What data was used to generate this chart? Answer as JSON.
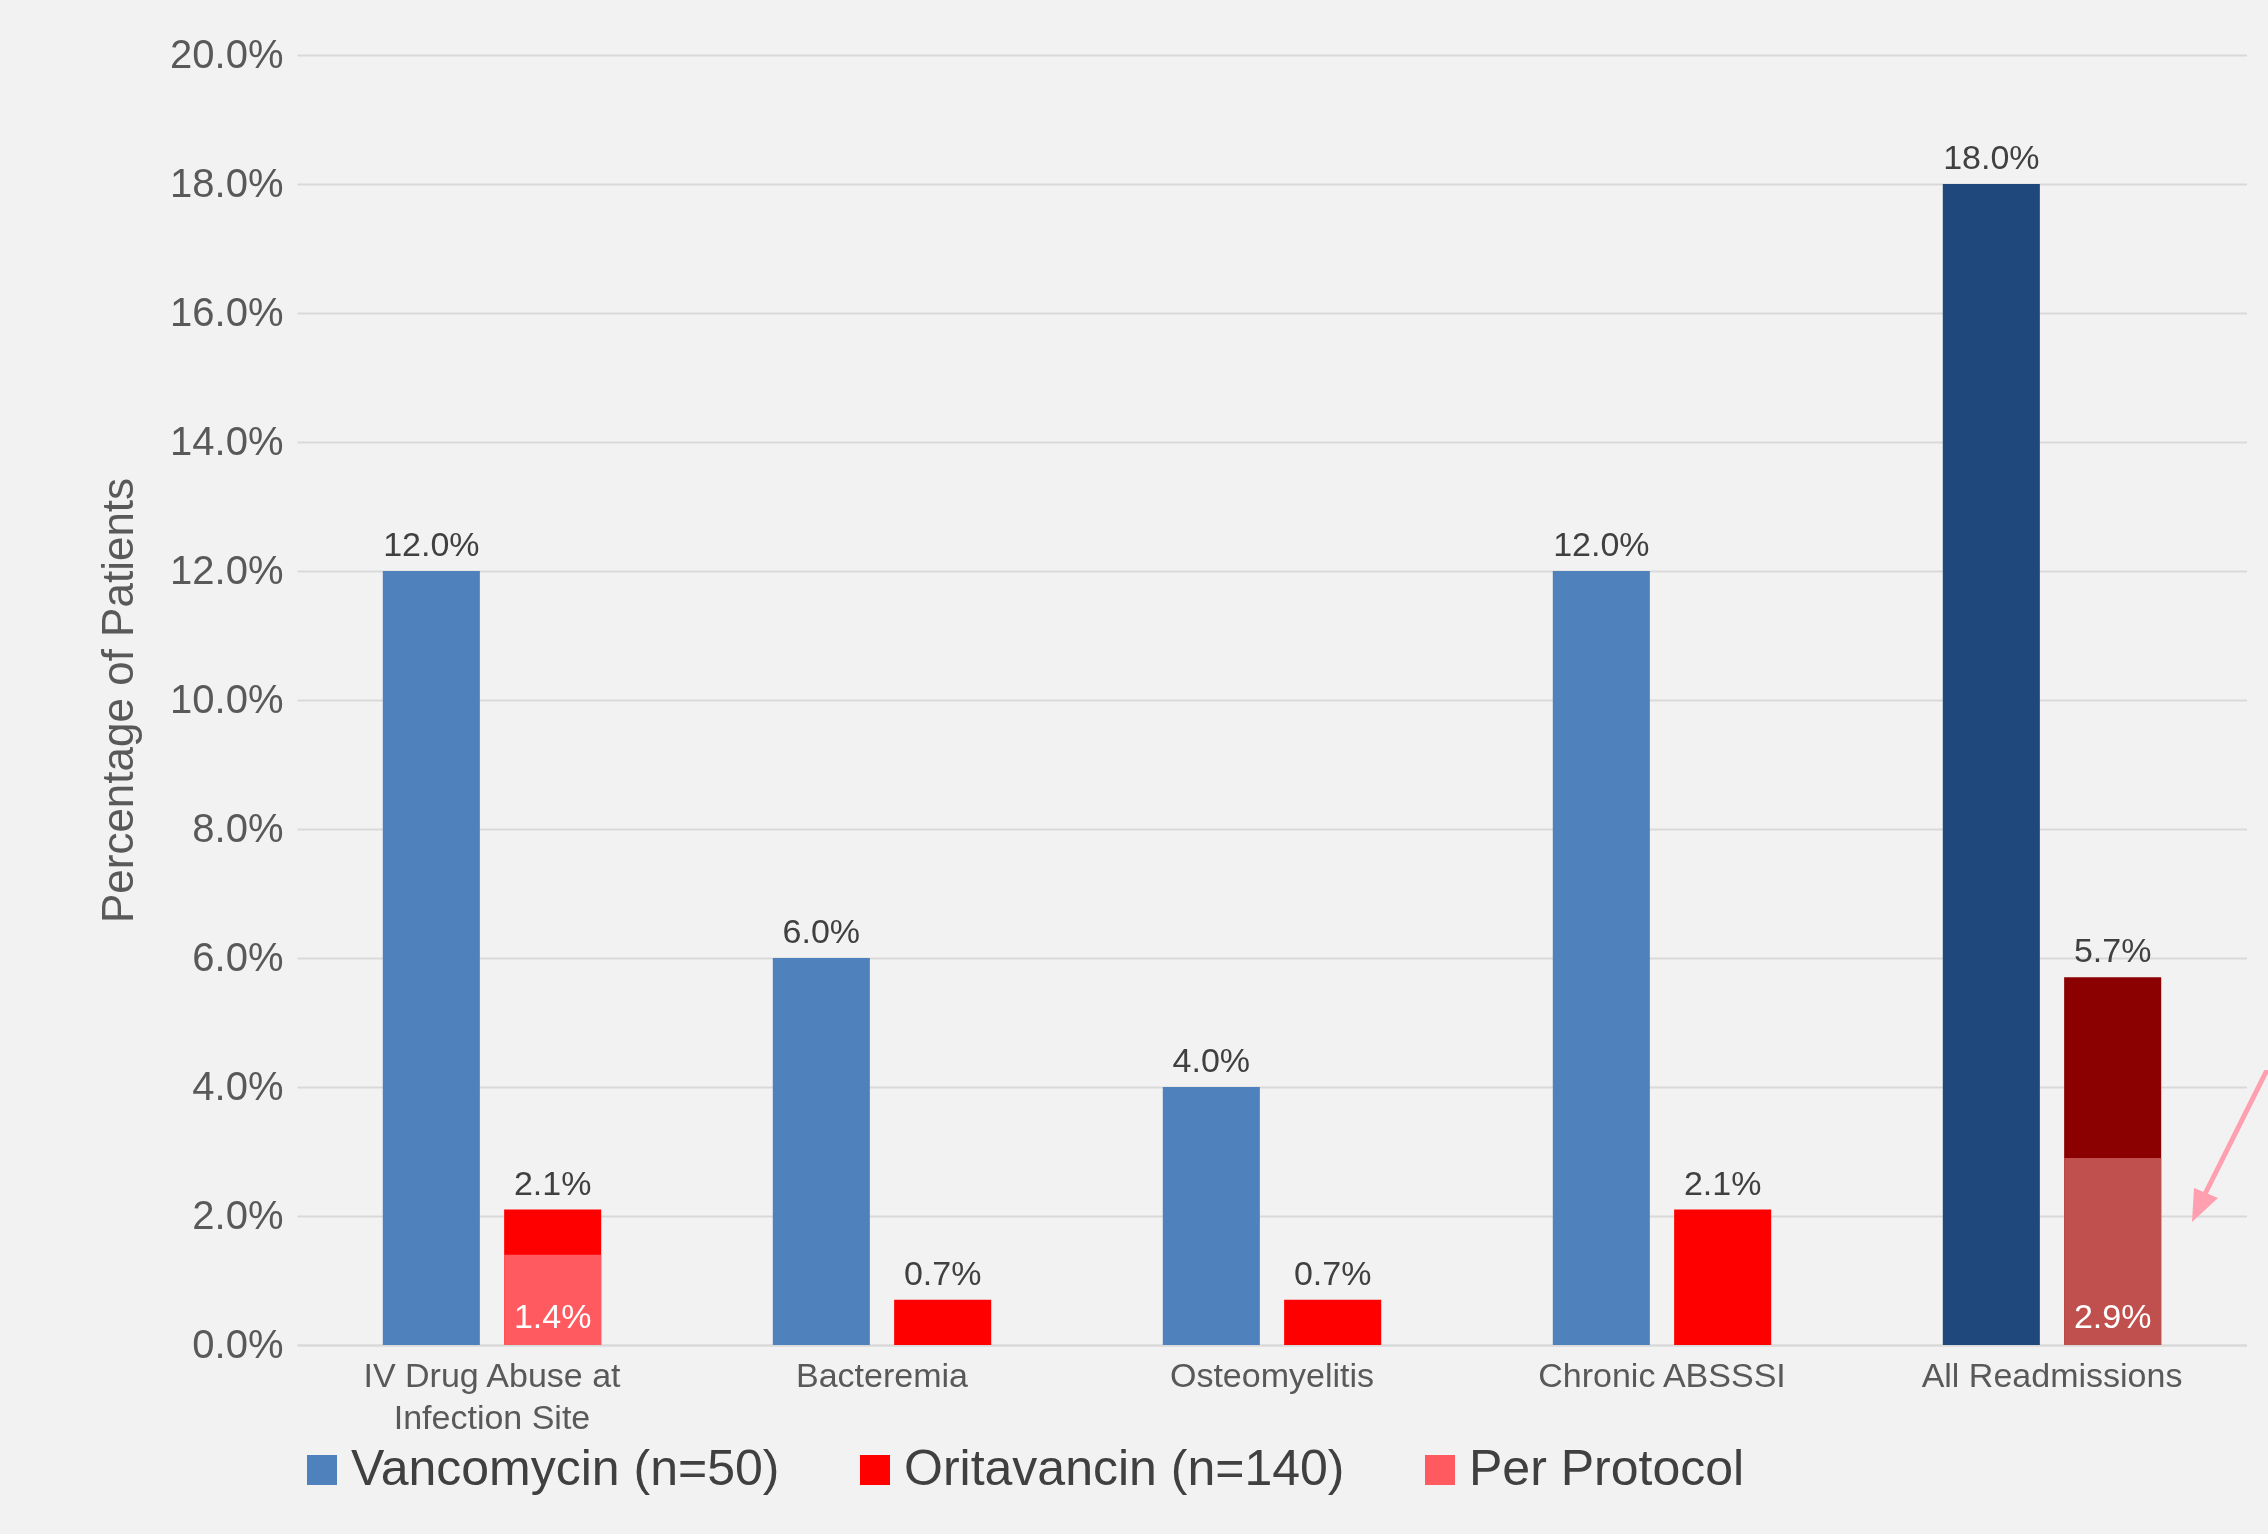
{
  "chart_data": {
    "type": "bar",
    "ylabel": "Percentage of Patients",
    "categories": [
      "IV Drug Abuse at Infection Site",
      "Bacteremia",
      "Osteomyelitis",
      "Chronic ABSSSI",
      "All Readmissions"
    ],
    "series": [
      {
        "name": "Vancomycin (n=50)",
        "color": "#4f81bd",
        "colors": [
          "#4f81bd",
          "#4f81bd",
          "#4f81bd",
          "#4f81bd",
          "#1f497d"
        ],
        "values": [
          12,
          6,
          4,
          12,
          18
        ],
        "value_labels": [
          "12.0%",
          "6.0%",
          "4.0%",
          "12.0%",
          "18.0%"
        ]
      },
      {
        "name": "Oritavancin (n=140)",
        "color": "#ff0000",
        "colors": [
          "#ff0000",
          "#ff0000",
          "#ff0000",
          "#ff0000",
          "#8b0000"
        ],
        "values": [
          2.1,
          0.7,
          0.7,
          2.1,
          5.7
        ],
        "value_labels": [
          "2.1%",
          "0.7%",
          "0.7%",
          "2.1%",
          "5.7%"
        ]
      },
      {
        "name": "Per Protocol",
        "color": "#ff5a5f",
        "colors": [
          "#ff5a5f",
          null,
          null,
          null,
          "#c0504d"
        ],
        "values": [
          1.4,
          null,
          null,
          null,
          2.9
        ],
        "value_labels": [
          "1.4%",
          null,
          null,
          null,
          "2.9%"
        ]
      }
    ],
    "ylim": [
      0,
      20
    ],
    "yticks": [
      {
        "value": 0,
        "label": "0.0%"
      },
      {
        "value": 2,
        "label": "2.0%"
      },
      {
        "value": 4,
        "label": "4.0%"
      },
      {
        "value": 6,
        "label": "6.0%"
      },
      {
        "value": 8,
        "label": "8.0%"
      },
      {
        "value": 10,
        "label": "10.0%"
      },
      {
        "value": 12,
        "label": "12.0%"
      },
      {
        "value": 14,
        "label": "14.0%"
      },
      {
        "value": 16,
        "label": "16.0%"
      },
      {
        "value": 18,
        "label": "18.0%"
      },
      {
        "value": 20,
        "label": "20.0%"
      }
    ],
    "grid": "y",
    "legend": "bottom"
  }
}
